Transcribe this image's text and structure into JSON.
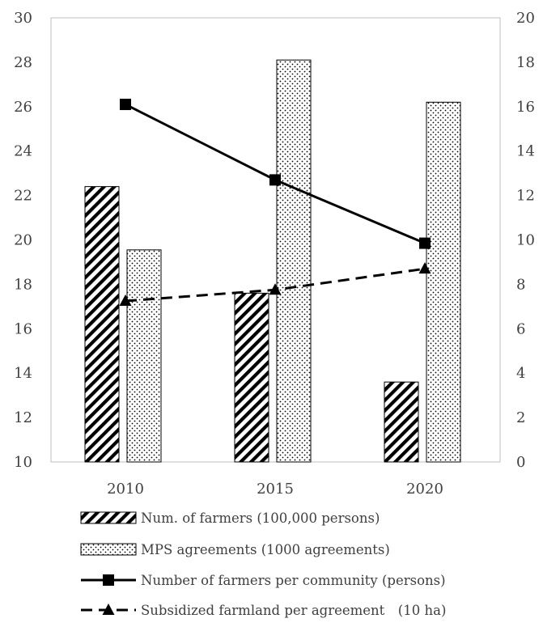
{
  "chart_data": {
    "type": "bar",
    "categories": [
      "2010",
      "2015",
      "2020"
    ],
    "series": [
      {
        "name": "Num. of farmers (100,000 persons)",
        "kind": "bar",
        "axis": "left",
        "pattern": "diagonal-hatch",
        "values": [
          22.4,
          17.6,
          13.6
        ]
      },
      {
        "name": "MPS agreements (1000 agreements)",
        "kind": "bar",
        "axis": "left",
        "pattern": "dots",
        "values": [
          19.55,
          28.1,
          26.2
        ]
      },
      {
        "name": "Number of farmers per community (persons)",
        "kind": "line",
        "axis": "right",
        "marker": "square",
        "line_style": "solid",
        "values": [
          16.1,
          12.7,
          9.85
        ]
      },
      {
        "name": "Subsidized farmland per agreement　(10 ha)",
        "kind": "line",
        "axis": "right",
        "marker": "triangle",
        "line_style": "dashed",
        "values": [
          7.25,
          7.75,
          8.7
        ]
      }
    ],
    "left_axis": {
      "min": 10,
      "max": 30,
      "ticks": [
        "10",
        "12",
        "14",
        "16",
        "18",
        "20",
        "22",
        "24",
        "26",
        "28",
        "30"
      ]
    },
    "right_axis": {
      "min": 0,
      "max": 20,
      "ticks": [
        "0",
        "2",
        "4",
        "6",
        "8",
        "10",
        "12",
        "14",
        "16",
        "18",
        "20"
      ]
    },
    "grid": false,
    "legend_position": "bottom",
    "colors": {
      "ink": "#000000",
      "axis": "#bfbfbf",
      "text": "#404040"
    }
  }
}
